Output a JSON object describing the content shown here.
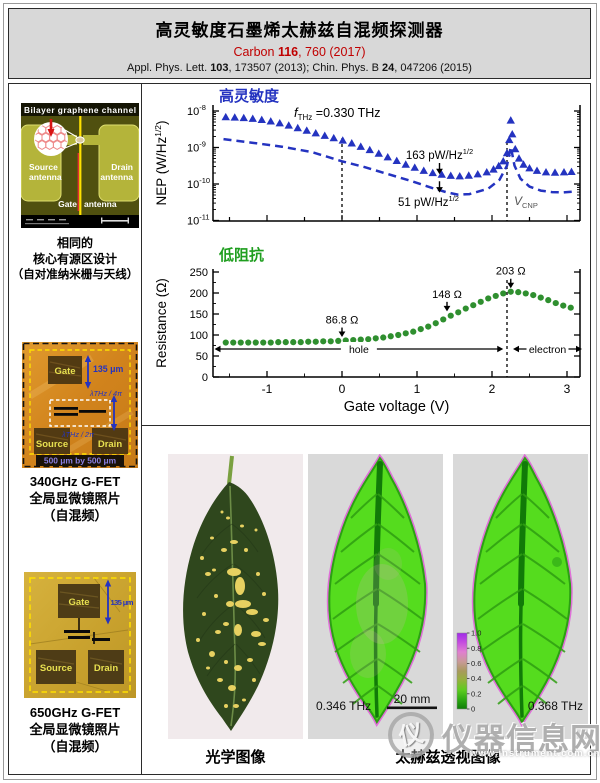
{
  "colors": {
    "accent_blue": "#2433c0",
    "accent_green": "#2f8f2f",
    "ref_red": "#c00000",
    "thz_leaf_green": "#55dc1e",
    "thz_outline_magenta": "#e05cd8",
    "micrograph_orange": "#d8891f",
    "micrograph_gold": "#c9a22e"
  },
  "header": {
    "title": "高灵敏度石墨烯太赫兹自混频探测器",
    "ref_primary_parts": [
      [
        "Carbon ",
        0
      ],
      [
        "116",
        1
      ],
      [
        ", 760 (2017)",
        0
      ]
    ],
    "ref_secondary_parts": [
      [
        "Appl. Phys. Lett. ",
        0
      ],
      [
        "103",
        1
      ],
      [
        ", 173507 (2013); Chin. Phys. B ",
        0
      ],
      [
        "24",
        1
      ],
      [
        ", 047206 (2015)",
        0
      ]
    ]
  },
  "left_column": {
    "schematic": {
      "top_label": "Bilayer graphene channel",
      "source_line1": "Source",
      "source_line2": "antenna",
      "drain_line1": "Drain",
      "drain_line2": "antenna",
      "gate_line1": "Gate",
      "gate_line2": "antenna"
    },
    "caption1_lines": [
      "相同的",
      "核心有源区设计",
      "（自对准纳米栅与天线）"
    ],
    "fet340": {
      "gate": "Gate",
      "source": "Source",
      "drain": "Drain",
      "dim": "135 μm",
      "lambda4": "λTHz / 4π",
      "lambda2": "λTHz / 2π",
      "size": "500 μm by 500 μm"
    },
    "caption2_lines": [
      "340GHz G-FET",
      "全局显微镜照片",
      "（自混频）"
    ],
    "fet650": {
      "gate": "Gate",
      "source": "Source",
      "drain": "Drain",
      "dim": "135 μm"
    },
    "caption3_lines": [
      "650GHz G-FET",
      "全局显微镜照片",
      "（自混频）"
    ]
  },
  "chart_data": [
    {
      "type": "scatter",
      "panel_label": "高灵敏度",
      "panel_label_color": "#2433c0",
      "ylabel_main": "NEP (W/Hz",
      "ylabel_sup": "1/2",
      "ylabel_close": ")",
      "yscale": "log",
      "ylim": [
        1e-11,
        1e-08
      ],
      "xlim": [
        -1.75,
        3.25
      ],
      "x_tick_step": 0.5,
      "grid": false,
      "annotation_freq": {
        "it": "f",
        "sub": "THz",
        "rest": " =0.330 THz"
      },
      "annotation_min_triangle": {
        "text": "163 pW/Hz",
        "sup": "1/2",
        "arrow_x": 1.3,
        "value": 1.63e-10
      },
      "annotation_min_dashed": {
        "text": "51 pW/Hz",
        "sup": "1/2",
        "arrow_x": 1.3,
        "value": 5.1e-11
      },
      "annotation_vcnp": {
        "it": "V",
        "sub": "CNP"
      },
      "vlines": [
        0,
        2.2
      ],
      "series": [
        {
          "name": "NEP measured",
          "marker": "triangle",
          "color": "#2433c0",
          "data": [
            [
              -1.55,
              6.8e-09
            ],
            [
              -1.43,
              6.6e-09
            ],
            [
              -1.31,
              6.4e-09
            ],
            [
              -1.19,
              6.1e-09
            ],
            [
              -1.07,
              5.7e-09
            ],
            [
              -0.95,
              5.2e-09
            ],
            [
              -0.83,
              4.6e-09
            ],
            [
              -0.71,
              4e-09
            ],
            [
              -0.59,
              3.4e-09
            ],
            [
              -0.47,
              2.9e-09
            ],
            [
              -0.35,
              2.45e-09
            ],
            [
              -0.23,
              2.1e-09
            ],
            [
              -0.11,
              1.8e-09
            ],
            [
              0.01,
              1.55e-09
            ],
            [
              0.13,
              1.3e-09
            ],
            [
              0.25,
              1.05e-09
            ],
            [
              0.37,
              8.5e-10
            ],
            [
              0.49,
              6.8e-10
            ],
            [
              0.61,
              5.4e-10
            ],
            [
              0.73,
              4.3e-10
            ],
            [
              0.85,
              3.4e-10
            ],
            [
              0.97,
              2.8e-10
            ],
            [
              1.09,
              2.3e-10
            ],
            [
              1.21,
              2e-10
            ],
            [
              1.33,
              1.8e-10
            ],
            [
              1.45,
              1.68e-10
            ],
            [
              1.57,
              1.63e-10
            ],
            [
              1.69,
              1.7e-10
            ],
            [
              1.81,
              1.85e-10
            ],
            [
              1.93,
              2.1e-10
            ],
            [
              2.02,
              2.5e-10
            ],
            [
              2.09,
              3.1e-10
            ],
            [
              2.15,
              4.2e-10
            ],
            [
              2.2,
              7e-10
            ],
            [
              2.23,
              1.6e-09
            ],
            [
              2.25,
              5.5e-09
            ],
            [
              2.27,
              2.3e-09
            ],
            [
              2.31,
              9e-10
            ],
            [
              2.36,
              5e-10
            ],
            [
              2.42,
              3.4e-10
            ],
            [
              2.5,
              2.7e-10
            ],
            [
              2.6,
              2.3e-10
            ],
            [
              2.72,
              2.1e-10
            ],
            [
              2.84,
              2.05e-10
            ],
            [
              2.96,
              2.1e-10
            ],
            [
              3.06,
              2.15e-10
            ]
          ]
        },
        {
          "name": "NEP dashed",
          "style": "dashed",
          "color": "#2433c0",
          "data": [
            [
              -1.58,
              1.7e-09
            ],
            [
              -1.2,
              1.35e-09
            ],
            [
              -0.8,
              1.05e-09
            ],
            [
              -0.4,
              7.5e-10
            ],
            [
              0.0,
              4.2e-10
            ],
            [
              0.3,
              2.9e-10
            ],
            [
              0.6,
              1.9e-10
            ],
            [
              0.9,
              1.25e-10
            ],
            [
              1.2,
              7.8e-11
            ],
            [
              1.4,
              5.9e-11
            ],
            [
              1.55,
              5.1e-11
            ],
            [
              1.7,
              5.3e-11
            ],
            [
              1.95,
              7.5e-11
            ],
            [
              2.1,
              1.3e-10
            ],
            [
              2.2,
              3.2e-10
            ],
            [
              2.25,
              1.05e-09
            ],
            [
              2.3,
              3.2e-10
            ],
            [
              2.38,
              1.4e-10
            ],
            [
              2.5,
              8.5e-11
            ],
            [
              2.65,
              6.6e-11
            ],
            [
              2.8,
              6e-11
            ],
            [
              2.95,
              5.9e-11
            ],
            [
              3.08,
              6.2e-11
            ]
          ]
        }
      ]
    },
    {
      "type": "scatter",
      "panel_label": "低阻抗",
      "panel_label_color": "#1f9e1f",
      "xlabel": "Gate voltage (V)",
      "ylabel": "Resistance (Ω)",
      "ylim": [
        0,
        250
      ],
      "yticks": [
        0,
        50,
        100,
        150,
        200,
        250
      ],
      "xlim": [
        -1.75,
        3.25
      ],
      "xticks": [
        -1,
        0,
        1,
        2,
        3
      ],
      "vline": 2.2,
      "regions": [
        {
          "label": "hole",
          "from": -1.7,
          "to": 2.15
        },
        {
          "label": "electron",
          "from": 2.28,
          "to": 3.2
        }
      ],
      "annotations": [
        {
          "label": "86.8 Ω",
          "x": 0,
          "value": 86.8
        },
        {
          "label": "148 Ω",
          "x": 1.4,
          "value": 148
        },
        {
          "label": "203 Ω",
          "x": 2.25,
          "value": 203
        }
      ],
      "series": [
        {
          "name": "Resistance",
          "marker": "circle",
          "color": "#2f8f2f",
          "data": [
            [
              -1.55,
              82
            ],
            [
              -1.45,
              82
            ],
            [
              -1.35,
              82
            ],
            [
              -1.25,
              82
            ],
            [
              -1.15,
              82
            ],
            [
              -1.05,
              82
            ],
            [
              -0.95,
              82
            ],
            [
              -0.85,
              83
            ],
            [
              -0.75,
              83
            ],
            [
              -0.65,
              83
            ],
            [
              -0.55,
              83
            ],
            [
              -0.45,
              84
            ],
            [
              -0.35,
              84
            ],
            [
              -0.25,
              85
            ],
            [
              -0.15,
              85
            ],
            [
              -0.05,
              86
            ],
            [
              0.05,
              87
            ],
            [
              0.15,
              88
            ],
            [
              0.25,
              89
            ],
            [
              0.35,
              90
            ],
            [
              0.45,
              92
            ],
            [
              0.55,
              94
            ],
            [
              0.65,
              97
            ],
            [
              0.75,
              100
            ],
            [
              0.85,
              104
            ],
            [
              0.95,
              108
            ],
            [
              1.05,
              114
            ],
            [
              1.15,
              120
            ],
            [
              1.25,
              128
            ],
            [
              1.35,
              137
            ],
            [
              1.45,
              146
            ],
            [
              1.55,
              154
            ],
            [
              1.65,
              163
            ],
            [
              1.75,
              171
            ],
            [
              1.85,
              179
            ],
            [
              1.95,
              187
            ],
            [
              2.05,
              193
            ],
            [
              2.15,
              199
            ],
            [
              2.25,
              203
            ],
            [
              2.35,
              202
            ],
            [
              2.45,
              199
            ],
            [
              2.55,
              195
            ],
            [
              2.65,
              189
            ],
            [
              2.75,
              183
            ],
            [
              2.85,
              176
            ],
            [
              2.95,
              170
            ],
            [
              3.05,
              165
            ]
          ]
        }
      ]
    }
  ],
  "leaf_panel": {
    "optical_caption": "光学图像",
    "thz_caption": "太赫兹透视图像",
    "freq1": "0.346 THz",
    "freq2": "0.368 THz",
    "scalebar": "20 mm",
    "colorbar_ticks": [
      "1.0",
      "0.8",
      "0.6",
      "0.4",
      "0.2",
      "0"
    ]
  },
  "watermark": {
    "logo_glyph": "仪",
    "site": "仪器信息网",
    "url": "www.instrument.com.cn"
  }
}
